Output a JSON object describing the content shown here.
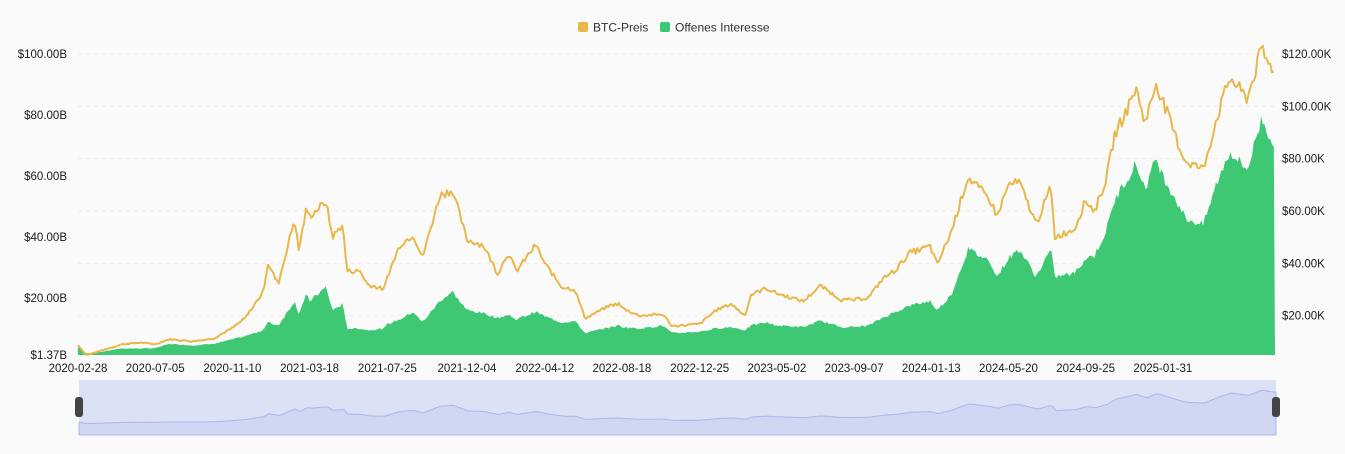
{
  "chart_data": {
    "type": "area",
    "title": "",
    "legend_position": "top-center",
    "grid": true,
    "watermark": "coinglass",
    "series": [
      {
        "name": "BTC-Preis",
        "kind": "line",
        "axis": "right",
        "color": "#e8b84a",
        "points": [
          [
            "2020-02-28",
            8800
          ],
          [
            "2020-03-13",
            4900
          ],
          [
            "2020-04-10",
            6900
          ],
          [
            "2020-05-10",
            9000
          ],
          [
            "2020-06-10",
            9700
          ],
          [
            "2020-07-05",
            9100
          ],
          [
            "2020-07-28",
            11000
          ],
          [
            "2020-09-05",
            10200
          ],
          [
            "2020-10-10",
            11300
          ],
          [
            "2020-11-10",
            15300
          ],
          [
            "2020-12-01",
            19000
          ],
          [
            "2020-12-31",
            29000
          ],
          [
            "2021-01-08",
            40000
          ],
          [
            "2021-01-25",
            32000
          ],
          [
            "2021-02-21",
            57000
          ],
          [
            "2021-02-28",
            45000
          ],
          [
            "2021-03-13",
            61000
          ],
          [
            "2021-03-18",
            58000
          ],
          [
            "2021-04-14",
            63500
          ],
          [
            "2021-04-25",
            50000
          ],
          [
            "2021-05-12",
            55000
          ],
          [
            "2021-05-19",
            37000
          ],
          [
            "2021-06-10",
            37000
          ],
          [
            "2021-06-22",
            32000
          ],
          [
            "2021-07-20",
            30000
          ],
          [
            "2021-07-25",
            35000
          ],
          [
            "2021-08-15",
            47000
          ],
          [
            "2021-09-06",
            51000
          ],
          [
            "2021-09-21",
            42000
          ],
          [
            "2021-10-20",
            66000
          ],
          [
            "2021-11-10",
            68000
          ],
          [
            "2021-12-04",
            49000
          ],
          [
            "2021-12-31",
            47000
          ],
          [
            "2022-01-24",
            36000
          ],
          [
            "2022-02-10",
            44000
          ],
          [
            "2022-02-24",
            37000
          ],
          [
            "2022-03-28",
            47000
          ],
          [
            "2022-04-12",
            40000
          ],
          [
            "2022-05-10",
            31000
          ],
          [
            "2022-06-01",
            30000
          ],
          [
            "2022-06-18",
            19000
          ],
          [
            "2022-07-30",
            24000
          ],
          [
            "2022-08-13",
            24500
          ],
          [
            "2022-08-18",
            23000
          ],
          [
            "2022-09-15",
            20000
          ],
          [
            "2022-10-25",
            20500
          ],
          [
            "2022-11-09",
            16000
          ],
          [
            "2022-12-25",
            16800
          ],
          [
            "2023-01-20",
            22000
          ],
          [
            "2023-02-15",
            24500
          ],
          [
            "2023-03-10",
            20000
          ],
          [
            "2023-03-20",
            28000
          ],
          [
            "2023-04-14",
            30500
          ],
          [
            "2023-05-02",
            28500
          ],
          [
            "2023-06-15",
            25500
          ],
          [
            "2023-07-13",
            31500
          ],
          [
            "2023-08-17",
            26000
          ],
          [
            "2023-09-07",
            26000
          ],
          [
            "2023-10-01",
            27000
          ],
          [
            "2023-10-24",
            34000
          ],
          [
            "2023-11-15",
            37500
          ],
          [
            "2023-12-08",
            44000
          ],
          [
            "2024-01-11",
            46500
          ],
          [
            "2024-01-23",
            39500
          ],
          [
            "2024-02-15",
            52000
          ],
          [
            "2024-03-14",
            73000
          ],
          [
            "2024-04-20",
            64000
          ],
          [
            "2024-05-01",
            58000
          ],
          [
            "2024-05-20",
            70000
          ],
          [
            "2024-06-07",
            71000
          ],
          [
            "2024-07-05",
            55000
          ],
          [
            "2024-07-29",
            69000
          ],
          [
            "2024-08-05",
            50000
          ],
          [
            "2024-09-06",
            53000
          ],
          [
            "2024-09-25",
            64000
          ],
          [
            "2024-10-10",
            60000
          ],
          [
            "2024-10-29",
            72000
          ],
          [
            "2024-11-12",
            89000
          ],
          [
            "2024-12-05",
            100000
          ],
          [
            "2024-12-17",
            107000
          ],
          [
            "2025-01-02",
            94000
          ],
          [
            "2025-01-20",
            109000
          ],
          [
            "2025-01-31",
            102000
          ],
          [
            "2025-02-28",
            84000
          ],
          [
            "2025-03-10",
            79000
          ],
          [
            "2025-04-08",
            76000
          ],
          [
            "2025-05-01",
            96000
          ],
          [
            "2025-05-22",
            111000
          ],
          [
            "2025-06-20",
            103000
          ],
          [
            "2025-07-14",
            122000
          ],
          [
            "2025-07-25",
            116000
          ],
          [
            "2025-08-05",
            114000
          ]
        ]
      },
      {
        "name": "Offenes Interesse",
        "kind": "area",
        "axis": "left",
        "color": "#3ec873",
        "points": [
          [
            "2020-02-28",
            4.0
          ],
          [
            "2020-03-13",
            1.9
          ],
          [
            "2020-04-10",
            2.5
          ],
          [
            "2020-05-10",
            3.5
          ],
          [
            "2020-06-10",
            3.5
          ],
          [
            "2020-07-05",
            3.6
          ],
          [
            "2020-07-28",
            5.0
          ],
          [
            "2020-09-05",
            4.5
          ],
          [
            "2020-10-10",
            5.0
          ],
          [
            "2020-11-10",
            6.5
          ],
          [
            "2020-12-01",
            7.5
          ],
          [
            "2020-12-31",
            9.5
          ],
          [
            "2021-01-08",
            12.0
          ],
          [
            "2021-01-25",
            11.0
          ],
          [
            "2021-02-21",
            19.0
          ],
          [
            "2021-02-28",
            15.0
          ],
          [
            "2021-03-13",
            21.0
          ],
          [
            "2021-03-18",
            19.0
          ],
          [
            "2021-04-14",
            23.5
          ],
          [
            "2021-04-25",
            16.0
          ],
          [
            "2021-05-12",
            18.0
          ],
          [
            "2021-05-19",
            10.0
          ],
          [
            "2021-06-10",
            10.0
          ],
          [
            "2021-06-22",
            9.5
          ],
          [
            "2021-07-20",
            10.0
          ],
          [
            "2021-07-25",
            11.5
          ],
          [
            "2021-08-15",
            13.0
          ],
          [
            "2021-09-06",
            15.5
          ],
          [
            "2021-09-21",
            12.0
          ],
          [
            "2021-10-20",
            19.0
          ],
          [
            "2021-11-10",
            22.0
          ],
          [
            "2021-12-04",
            16.0
          ],
          [
            "2021-12-31",
            15.0
          ],
          [
            "2022-01-24",
            13.5
          ],
          [
            "2022-02-10",
            14.5
          ],
          [
            "2022-02-24",
            13.0
          ],
          [
            "2022-03-28",
            15.5
          ],
          [
            "2022-04-12",
            14.0
          ],
          [
            "2022-05-10",
            12.0
          ],
          [
            "2022-06-01",
            12.5
          ],
          [
            "2022-06-18",
            8.5
          ],
          [
            "2022-07-30",
            10.5
          ],
          [
            "2022-08-13",
            11.0
          ],
          [
            "2022-08-18",
            10.5
          ],
          [
            "2022-09-15",
            10.0
          ],
          [
            "2022-10-25",
            11.0
          ],
          [
            "2022-11-09",
            8.5
          ],
          [
            "2022-12-25",
            9.0
          ],
          [
            "2023-01-20",
            10.0
          ],
          [
            "2023-02-15",
            10.5
          ],
          [
            "2023-03-10",
            9.5
          ],
          [
            "2023-03-20",
            11.0
          ],
          [
            "2023-04-14",
            12.0
          ],
          [
            "2023-05-02",
            11.0
          ],
          [
            "2023-06-15",
            10.5
          ],
          [
            "2023-07-13",
            12.5
          ],
          [
            "2023-08-17",
            10.5
          ],
          [
            "2023-09-07",
            10.5
          ],
          [
            "2023-10-01",
            11.0
          ],
          [
            "2023-10-24",
            13.5
          ],
          [
            "2023-11-15",
            15.5
          ],
          [
            "2023-12-08",
            17.5
          ],
          [
            "2024-01-11",
            19.0
          ],
          [
            "2024-01-23",
            16.0
          ],
          [
            "2024-02-15",
            21.0
          ],
          [
            "2024-03-14",
            36.0
          ],
          [
            "2024-04-20",
            32.0
          ],
          [
            "2024-05-01",
            27.0
          ],
          [
            "2024-05-20",
            33.0
          ],
          [
            "2024-06-07",
            36.0
          ],
          [
            "2024-07-05",
            27.0
          ],
          [
            "2024-07-29",
            36.0
          ],
          [
            "2024-08-05",
            27.0
          ],
          [
            "2024-09-06",
            28.0
          ],
          [
            "2024-09-25",
            33.0
          ],
          [
            "2024-10-10",
            34.0
          ],
          [
            "2024-10-29",
            42.0
          ],
          [
            "2024-11-12",
            52.0
          ],
          [
            "2024-12-05",
            60.0
          ],
          [
            "2024-12-17",
            64.0
          ],
          [
            "2025-01-02",
            56.0
          ],
          [
            "2025-01-20",
            66.0
          ],
          [
            "2025-01-31",
            60.0
          ],
          [
            "2025-02-28",
            50.0
          ],
          [
            "2025-03-10",
            46.0
          ],
          [
            "2025-04-08",
            44.0
          ],
          [
            "2025-05-01",
            58.0
          ],
          [
            "2025-05-22",
            68.0
          ],
          [
            "2025-06-20",
            62.0
          ],
          [
            "2025-07-14",
            79.0
          ],
          [
            "2025-07-25",
            74.0
          ],
          [
            "2025-08-05",
            70.0
          ]
        ]
      }
    ],
    "y_left": {
      "min": 1.37,
      "max": 100,
      "ticks": [
        1.37,
        20,
        40,
        60,
        80,
        100
      ],
      "tick_labels": [
        "$1.37B",
        "$20.00B",
        "$40.00B",
        "$60.00B",
        "$80.00B",
        "$100.00B"
      ]
    },
    "y_right": {
      "min": 0,
      "max": 120000,
      "ticks": [
        20000,
        40000,
        60000,
        80000,
        100000,
        120000
      ],
      "tick_labels": [
        "$20.00K",
        "$40.00K",
        "$60.00K",
        "$80.00K",
        "$100.00K",
        "$120.00K"
      ]
    },
    "x_axis": {
      "min": "2020-02-28",
      "max": "2025-08-05",
      "tick_labels": [
        "2020-02-28",
        "2020-07-05",
        "2020-11-10",
        "2021-03-18",
        "2021-07-25",
        "2021-12-04",
        "2022-04-12",
        "2022-08-18",
        "2022-12-25",
        "2023-05-02",
        "2023-09-07",
        "2024-01-13",
        "2024-05-20",
        "2024-09-25",
        "2025-01-31"
      ]
    },
    "navigator": {
      "visible": true,
      "range_start": 0,
      "range_end": 1
    }
  }
}
